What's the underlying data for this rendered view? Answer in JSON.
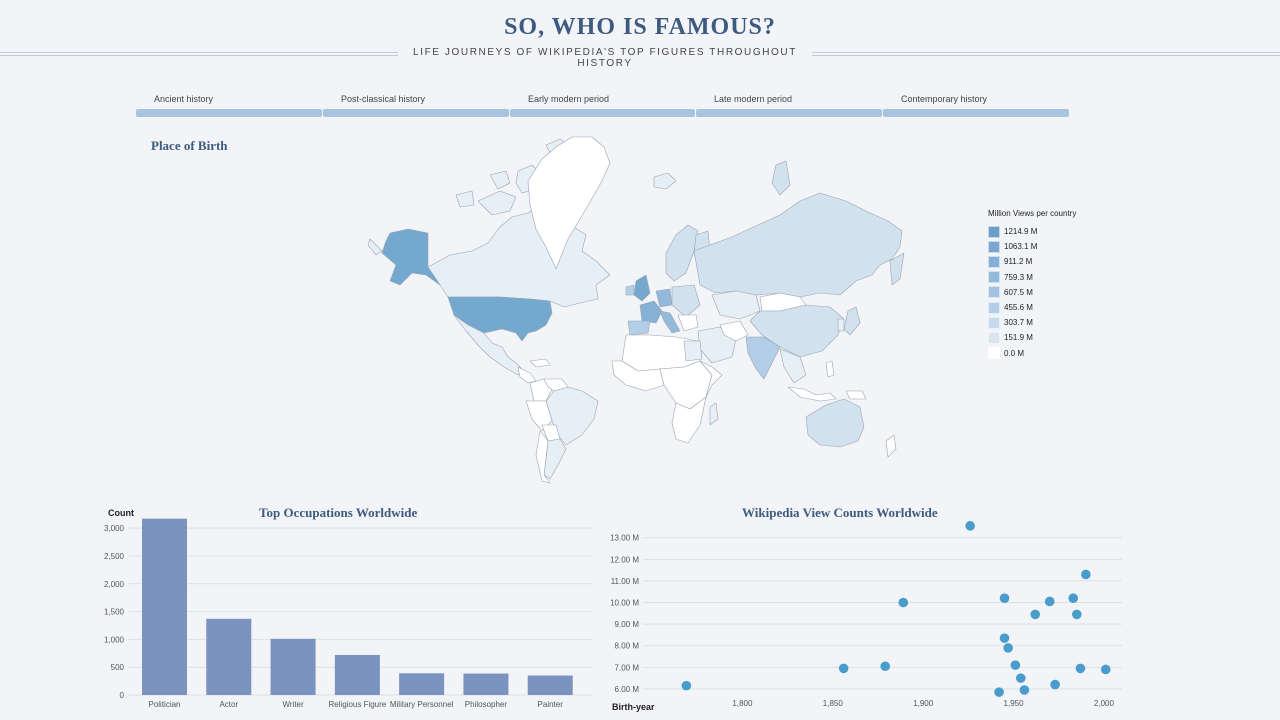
{
  "header": {
    "title": "SO, WHO IS FAMOUS?",
    "subtitle": "LIFE JOURNEYS OF WIKIPEDIA'S TOP FIGURES THROUGHOUT HISTORY"
  },
  "timeline": {
    "eras": [
      {
        "label": "Ancient history"
      },
      {
        "label": "Post-classical history"
      },
      {
        "label": "Early modern period"
      },
      {
        "label": "Late modern period"
      },
      {
        "label": "Contemporary history"
      }
    ],
    "bar_color": "#a9c4e0"
  },
  "map": {
    "title": "Place of Birth",
    "legend": {
      "title": "Million Views per country",
      "items": [
        {
          "label": "1214.9 M",
          "color": "#6e9fcc"
        },
        {
          "label": "1063.1 M",
          "color": "#79a7d1"
        },
        {
          "label": "911.2 M",
          "color": "#86b0d6"
        },
        {
          "label": "759.3 M",
          "color": "#93b9db"
        },
        {
          "label": "607.5 M",
          "color": "#a2c3e0"
        },
        {
          "label": "455.6 M",
          "color": "#b3cee6"
        },
        {
          "label": "303.7 M",
          "color": "#c5daec"
        },
        {
          "label": "151.9 M",
          "color": "#d9e6f2"
        },
        {
          "label": "0.0 M",
          "color": "#ffffff"
        }
      ]
    },
    "fill_high": "#74a8cf",
    "fill_mid": "#d2e1ee",
    "fill_low": "#e6eef6",
    "fill_zero": "#ffffff"
  },
  "chart_data": [
    {
      "type": "bar",
      "title": "Top Occupations Worldwide",
      "ylabel": "Count",
      "xlabel": "",
      "categories": [
        "Politician",
        "Actor",
        "Writer",
        "Religious Figure",
        "Military Personnel",
        "Philosopher",
        "Painter"
      ],
      "values": [
        3170,
        1370,
        1010,
        720,
        390,
        385,
        350
      ],
      "ylim": [
        0,
        3200
      ],
      "yticks": [
        0,
        500,
        1000,
        1500,
        2000,
        2500,
        3000
      ],
      "ytick_labels": [
        "0",
        "500",
        "1,000",
        "1,500",
        "2,000",
        "2,500",
        "3,000"
      ],
      "color": "#7b93bf",
      "grid": true
    },
    {
      "type": "scatter",
      "title": "Wikipedia View Counts Worldwide",
      "xlabel": "Birth-year",
      "ylabel": "",
      "xlim": [
        1745,
        2010
      ],
      "ylim": [
        5.95,
        13.45
      ],
      "xticks": [
        1800,
        1850,
        1900,
        1950,
        2000
      ],
      "xtick_labels": [
        "1,800",
        "1,850",
        "1,900",
        "1,950",
        "2,000"
      ],
      "yticks": [
        6,
        7,
        8,
        9,
        10,
        11,
        12,
        13
      ],
      "ytick_labels": [
        "6.00 M",
        "7.00 M",
        "8.00 M",
        "9.00 M",
        "10.00 M",
        "11.00 M",
        "12.00 M",
        "13.00 M"
      ],
      "color": "#4a9ccc",
      "grid": true,
      "points": [
        {
          "x": 1769,
          "y": 6.15
        },
        {
          "x": 1856,
          "y": 6.95
        },
        {
          "x": 1879,
          "y": 7.05
        },
        {
          "x": 1889,
          "y": 10.0
        },
        {
          "x": 1926,
          "y": 13.55
        },
        {
          "x": 1942,
          "y": 5.85
        },
        {
          "x": 1945,
          "y": 8.35
        },
        {
          "x": 1945,
          "y": 10.2
        },
        {
          "x": 1947,
          "y": 7.9
        },
        {
          "x": 1951,
          "y": 7.1
        },
        {
          "x": 1954,
          "y": 6.5
        },
        {
          "x": 1956,
          "y": 5.95
        },
        {
          "x": 1962,
          "y": 9.45
        },
        {
          "x": 1970,
          "y": 10.05
        },
        {
          "x": 1973,
          "y": 6.2
        },
        {
          "x": 1983,
          "y": 10.2
        },
        {
          "x": 1985,
          "y": 9.45
        },
        {
          "x": 1987,
          "y": 6.95
        },
        {
          "x": 1990,
          "y": 11.3
        },
        {
          "x": 2001,
          "y": 6.9
        }
      ]
    }
  ]
}
